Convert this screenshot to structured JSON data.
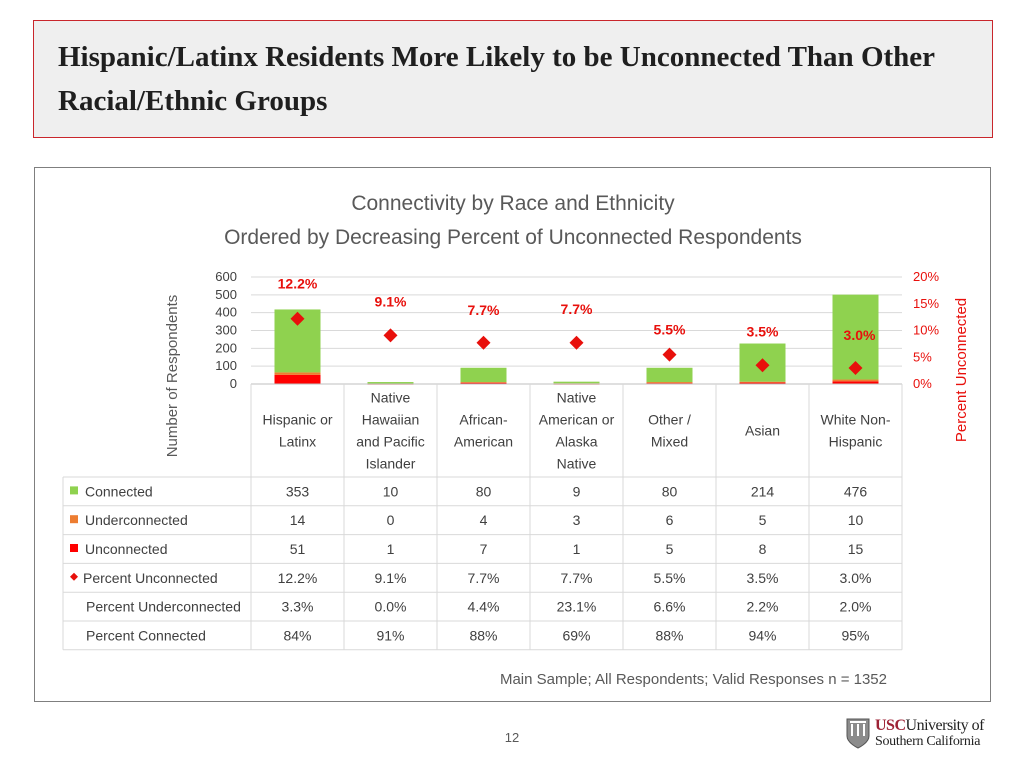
{
  "slide": {
    "title": "Hispanic/Latinx Residents More Likely to be Unconnected Than Other Racial/Ethnic Groups",
    "page_number": "12",
    "logo": {
      "abbrev": "USC",
      "line1_rest": "University of",
      "line2": "Southern California"
    }
  },
  "colors": {
    "connected": "#8fd24f",
    "underconnected": "#ed7d31",
    "unconnected": "#ff0000",
    "percent_marker": "#e8100c",
    "title_border": "#c9262c"
  },
  "chart_data": {
    "type": "bar",
    "stacked": true,
    "title": "Connectivity by Race and Ethnicity",
    "subtitle": "Ordered by Decreasing Percent of Unconnected Respondents",
    "ylabel": "Number of Respondents",
    "y2label": "Percent Unconnected",
    "ylim": [
      0,
      600
    ],
    "yticks": [
      "0",
      "100",
      "200",
      "300",
      "400",
      "500",
      "600"
    ],
    "y2lim": [
      0,
      20
    ],
    "y2ticks": [
      "0%",
      "5%",
      "10%",
      "15%",
      "20%"
    ],
    "categories": [
      [
        "Hispanic or",
        "Latinx"
      ],
      [
        "Native",
        "Hawaiian",
        "and Pacific",
        "Islander"
      ],
      [
        "African-",
        "American"
      ],
      [
        "Native",
        "American or",
        "Alaska",
        "Native"
      ],
      [
        "Other /",
        "Mixed"
      ],
      [
        "Asian"
      ],
      [
        "White Non-",
        "Hispanic"
      ]
    ],
    "series": [
      {
        "name": "Connected",
        "values": [
          353,
          10,
          80,
          9,
          80,
          214,
          476
        ],
        "labels": [
          "353",
          "10",
          "80",
          "9",
          "80",
          "214",
          "476"
        ]
      },
      {
        "name": "Underconnected",
        "values": [
          14,
          0,
          4,
          3,
          6,
          5,
          10
        ],
        "labels": [
          "14",
          "0",
          "4",
          "3",
          "6",
          "5",
          "10"
        ]
      },
      {
        "name": "Unconnected",
        "values": [
          51,
          1,
          7,
          1,
          5,
          8,
          15
        ],
        "labels": [
          "51",
          "1",
          "7",
          "1",
          "5",
          "8",
          "15"
        ]
      },
      {
        "name": "Percent Unconnected",
        "axis": "secondary",
        "values": [
          12.2,
          9.1,
          7.7,
          7.7,
          5.5,
          3.5,
          3.0
        ],
        "labels": [
          "12.2%",
          "9.1%",
          "7.7%",
          "7.7%",
          "5.5%",
          "3.5%",
          "3.0%"
        ]
      }
    ],
    "extra_rows": [
      {
        "name": "Percent Underconnected",
        "labels": [
          "3.3%",
          "0.0%",
          "4.4%",
          "23.1%",
          "6.6%",
          "2.2%",
          "2.0%"
        ]
      },
      {
        "name": "Percent Connected",
        "labels": [
          "84%",
          "91%",
          "88%",
          "69%",
          "88%",
          "94%",
          "95%"
        ]
      }
    ],
    "note": "Main Sample; All Respondents; Valid Responses n = 1352"
  }
}
